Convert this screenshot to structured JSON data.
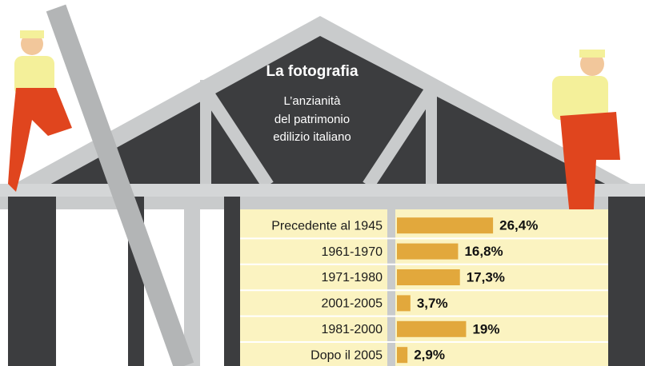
{
  "chart_data": {
    "type": "bar",
    "orientation": "horizontal",
    "title": "La fotografia",
    "subtitle": [
      "L’anzianità",
      "del patrimonio",
      "edilizio italiano"
    ],
    "categories": [
      "Precedente al 1945",
      "1961-1970",
      "1971-1980",
      "2001-2005",
      "1981-2000",
      "Dopo il 2005"
    ],
    "values": [
      26.4,
      16.8,
      17.3,
      3.7,
      19,
      2.9
    ],
    "value_labels": [
      "26,4%",
      "16,8%",
      "17,3%",
      "3,7%",
      "19%",
      "2,9%"
    ],
    "color": "#e2a83c"
  }
}
